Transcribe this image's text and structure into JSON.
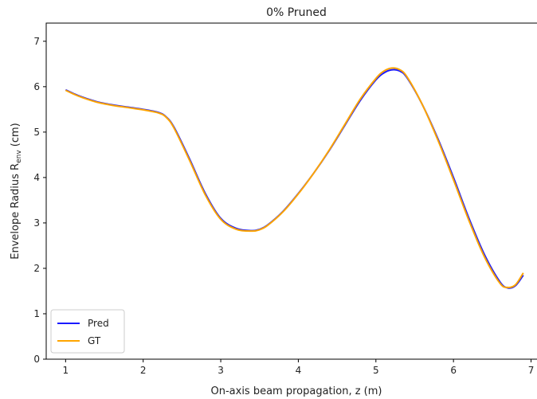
{
  "chart_data": {
    "type": "line",
    "title": "0% Pruned",
    "xlabel": "On-axis beam propagation, z (m)",
    "ylabel_main": "Envelope Radius R",
    "ylabel_sub": "env",
    "ylabel_unit": " (cm)",
    "xlim": [
      0.75,
      7.2
    ],
    "ylim": [
      0,
      7.4
    ],
    "xticks": [
      1,
      2,
      3,
      4,
      5,
      6,
      7
    ],
    "yticks": [
      0,
      1,
      2,
      3,
      4,
      5,
      6,
      7
    ],
    "grid": false,
    "legend_position": "lower-left",
    "series": [
      {
        "name": "Pred",
        "color": "#1a1aff",
        "x": [
          1.0,
          1.1,
          1.2,
          1.4,
          1.6,
          1.8,
          2.0,
          2.2,
          2.3,
          2.4,
          2.6,
          2.8,
          3.0,
          3.2,
          3.4,
          3.5,
          3.6,
          3.8,
          4.0,
          4.2,
          4.4,
          4.6,
          4.8,
          5.0,
          5.1,
          5.2,
          5.3,
          5.4,
          5.6,
          5.8,
          6.0,
          6.2,
          6.4,
          6.6,
          6.7,
          6.8,
          6.9
        ],
        "y": [
          5.93,
          5.85,
          5.78,
          5.67,
          5.6,
          5.55,
          5.5,
          5.43,
          5.33,
          5.1,
          4.4,
          3.65,
          3.1,
          2.88,
          2.83,
          2.86,
          2.95,
          3.25,
          3.65,
          4.1,
          4.6,
          5.15,
          5.7,
          6.15,
          6.3,
          6.37,
          6.35,
          6.2,
          5.6,
          4.85,
          4.0,
          3.1,
          2.3,
          1.7,
          1.57,
          1.62,
          1.85
        ]
      },
      {
        "name": "GT",
        "color": "#ffa500",
        "x": [
          1.0,
          1.1,
          1.2,
          1.4,
          1.6,
          1.8,
          2.0,
          2.2,
          2.3,
          2.4,
          2.6,
          2.8,
          3.0,
          3.2,
          3.4,
          3.5,
          3.6,
          3.8,
          4.0,
          4.2,
          4.4,
          4.6,
          4.8,
          5.0,
          5.1,
          5.2,
          5.3,
          5.4,
          5.6,
          5.8,
          6.0,
          6.2,
          6.4,
          6.6,
          6.7,
          6.8,
          6.9
        ],
        "y": [
          5.92,
          5.84,
          5.77,
          5.66,
          5.59,
          5.54,
          5.49,
          5.42,
          5.32,
          5.08,
          4.37,
          3.62,
          3.08,
          2.86,
          2.82,
          2.85,
          2.94,
          3.24,
          3.64,
          4.1,
          4.61,
          5.17,
          5.73,
          6.18,
          6.34,
          6.41,
          6.38,
          6.22,
          5.6,
          4.82,
          3.95,
          3.05,
          2.25,
          1.67,
          1.58,
          1.64,
          1.9
        ]
      }
    ]
  }
}
